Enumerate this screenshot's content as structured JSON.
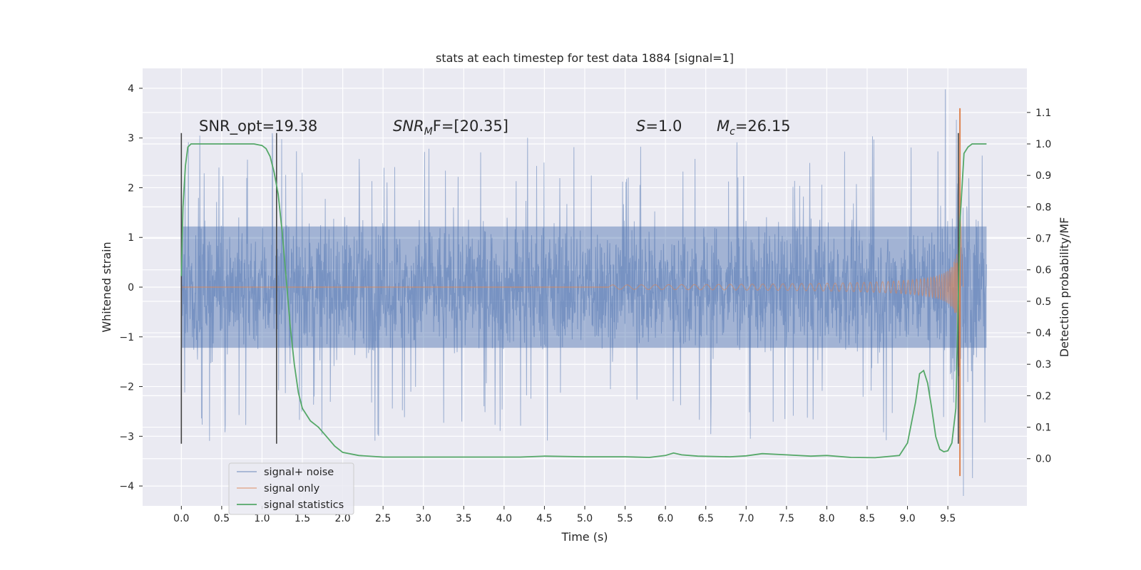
{
  "chart_data": {
    "type": "line",
    "title": "stats at each timestep for test data 1884 [signal=1]",
    "xlabel": "Time (s)",
    "ylabel": "Whitened strain",
    "y2label": "Detection probability/MF",
    "xlim": [
      -0.48,
      10.48
    ],
    "ylim": [
      -4.4,
      4.4
    ],
    "y2lim": [
      -0.15,
      1.24
    ],
    "x_ticks": [
      0.0,
      0.5,
      1.0,
      1.5,
      2.0,
      2.5,
      3.0,
      3.5,
      4.0,
      4.5,
      5.0,
      5.5,
      6.0,
      6.5,
      7.0,
      7.5,
      8.0,
      8.5,
      9.0,
      9.5
    ],
    "x_tick_labels": [
      "0.0",
      "0.5",
      "1.0",
      "1.5",
      "2.0",
      "2.5",
      "3.0",
      "3.5",
      "4.0",
      "4.5",
      "5.0",
      "5.5",
      "6.0",
      "6.5",
      "7.0",
      "7.5",
      "8.0",
      "8.5",
      "9.0",
      "9.5"
    ],
    "y_ticks": [
      4,
      3,
      2,
      1,
      0,
      -1,
      -2,
      -3,
      -4
    ],
    "y_tick_labels": [
      "4",
      "3",
      "2",
      "1",
      "0",
      "−1",
      "−2",
      "−3",
      "−4"
    ],
    "y2_ticks": [
      1.1,
      1.0,
      0.9,
      0.8,
      0.7,
      0.6,
      0.5,
      0.4,
      0.3,
      0.2,
      0.1,
      0.0
    ],
    "y2_tick_labels": [
      "1.1",
      "1.0",
      "0.9",
      "0.8",
      "0.7",
      "0.6",
      "0.5",
      "0.4",
      "0.3",
      "0.2",
      "0.1",
      "0.0"
    ],
    "grid": true,
    "legend_position": "lower-left",
    "series": [
      {
        "name": "signal+ noise",
        "color": "#4c72b0",
        "style": "dense noise trace, amplitude about ±1.2 with spikes to ±3.5",
        "t_start": 0.0,
        "t_end": 9.98
      },
      {
        "name": "signal only",
        "color": "#dd8452",
        "style": "chirp growing toward merger",
        "merger_time": 9.65,
        "merger_amplitude_range": [
          -3.8,
          3.6
        ]
      },
      {
        "name": "signal statistics",
        "color": "#55a868",
        "x": [
          0.0,
          0.02,
          0.05,
          0.08,
          0.12,
          0.18,
          0.25,
          0.35,
          0.5,
          0.7,
          0.9,
          1.0,
          1.05,
          1.1,
          1.15,
          1.2,
          1.25,
          1.3,
          1.35,
          1.4,
          1.45,
          1.5,
          1.6,
          1.7,
          1.8,
          1.9,
          2.0,
          2.2,
          2.5,
          3.0,
          3.5,
          4.0,
          4.2,
          4.5,
          5.0,
          5.5,
          5.8,
          6.0,
          6.1,
          6.2,
          6.4,
          6.8,
          7.0,
          7.2,
          7.5,
          7.8,
          8.0,
          8.3,
          8.6,
          8.9,
          9.0,
          9.1,
          9.15,
          9.2,
          9.25,
          9.3,
          9.35,
          9.4,
          9.45,
          9.5,
          9.55,
          9.6,
          9.62,
          9.65,
          9.7,
          9.75,
          9.8,
          9.9,
          9.98
        ],
        "y": [
          0.58,
          0.8,
          0.93,
          0.99,
          1.0,
          1.0,
          1.0,
          1.0,
          1.0,
          1.0,
          1.0,
          0.995,
          0.985,
          0.96,
          0.91,
          0.84,
          0.72,
          0.57,
          0.42,
          0.3,
          0.21,
          0.16,
          0.12,
          0.1,
          0.07,
          0.04,
          0.02,
          0.01,
          0.005,
          0.005,
          0.005,
          0.005,
          0.005,
          0.008,
          0.006,
          0.006,
          0.004,
          0.01,
          0.018,
          0.012,
          0.008,
          0.006,
          0.009,
          0.016,
          0.012,
          0.008,
          0.01,
          0.004,
          0.003,
          0.01,
          0.05,
          0.18,
          0.27,
          0.28,
          0.24,
          0.16,
          0.07,
          0.03,
          0.022,
          0.025,
          0.05,
          0.16,
          0.4,
          0.75,
          0.97,
          0.99,
          1.0,
          1.0,
          1.0
        ]
      }
    ],
    "vertical_lines": [
      {
        "x": 0.0,
        "y_range": [
          -3.15,
          3.1
        ]
      },
      {
        "x": 1.18,
        "y_range": [
          -3.15,
          3.1
        ]
      },
      {
        "x": 9.63,
        "y_range": [
          -3.15,
          3.1
        ]
      }
    ],
    "annotations": [
      {
        "text": "SNR_opt=19.38",
        "x": 0.2,
        "y": 3.18
      },
      {
        "text_main": "SNR",
        "text_sub": "M",
        "text_after": "F=[20.35]",
        "x": 2.6,
        "y": 3.18
      },
      {
        "text_italic": "S",
        "text_after": "=1.0",
        "x": 5.6,
        "y": 3.18
      },
      {
        "text_main": "M",
        "text_sub": "c",
        "text_after": "=26.15",
        "x": 6.6,
        "y": 3.18
      }
    ],
    "legend": [
      "signal+ noise",
      "signal only",
      "signal statistics"
    ]
  }
}
